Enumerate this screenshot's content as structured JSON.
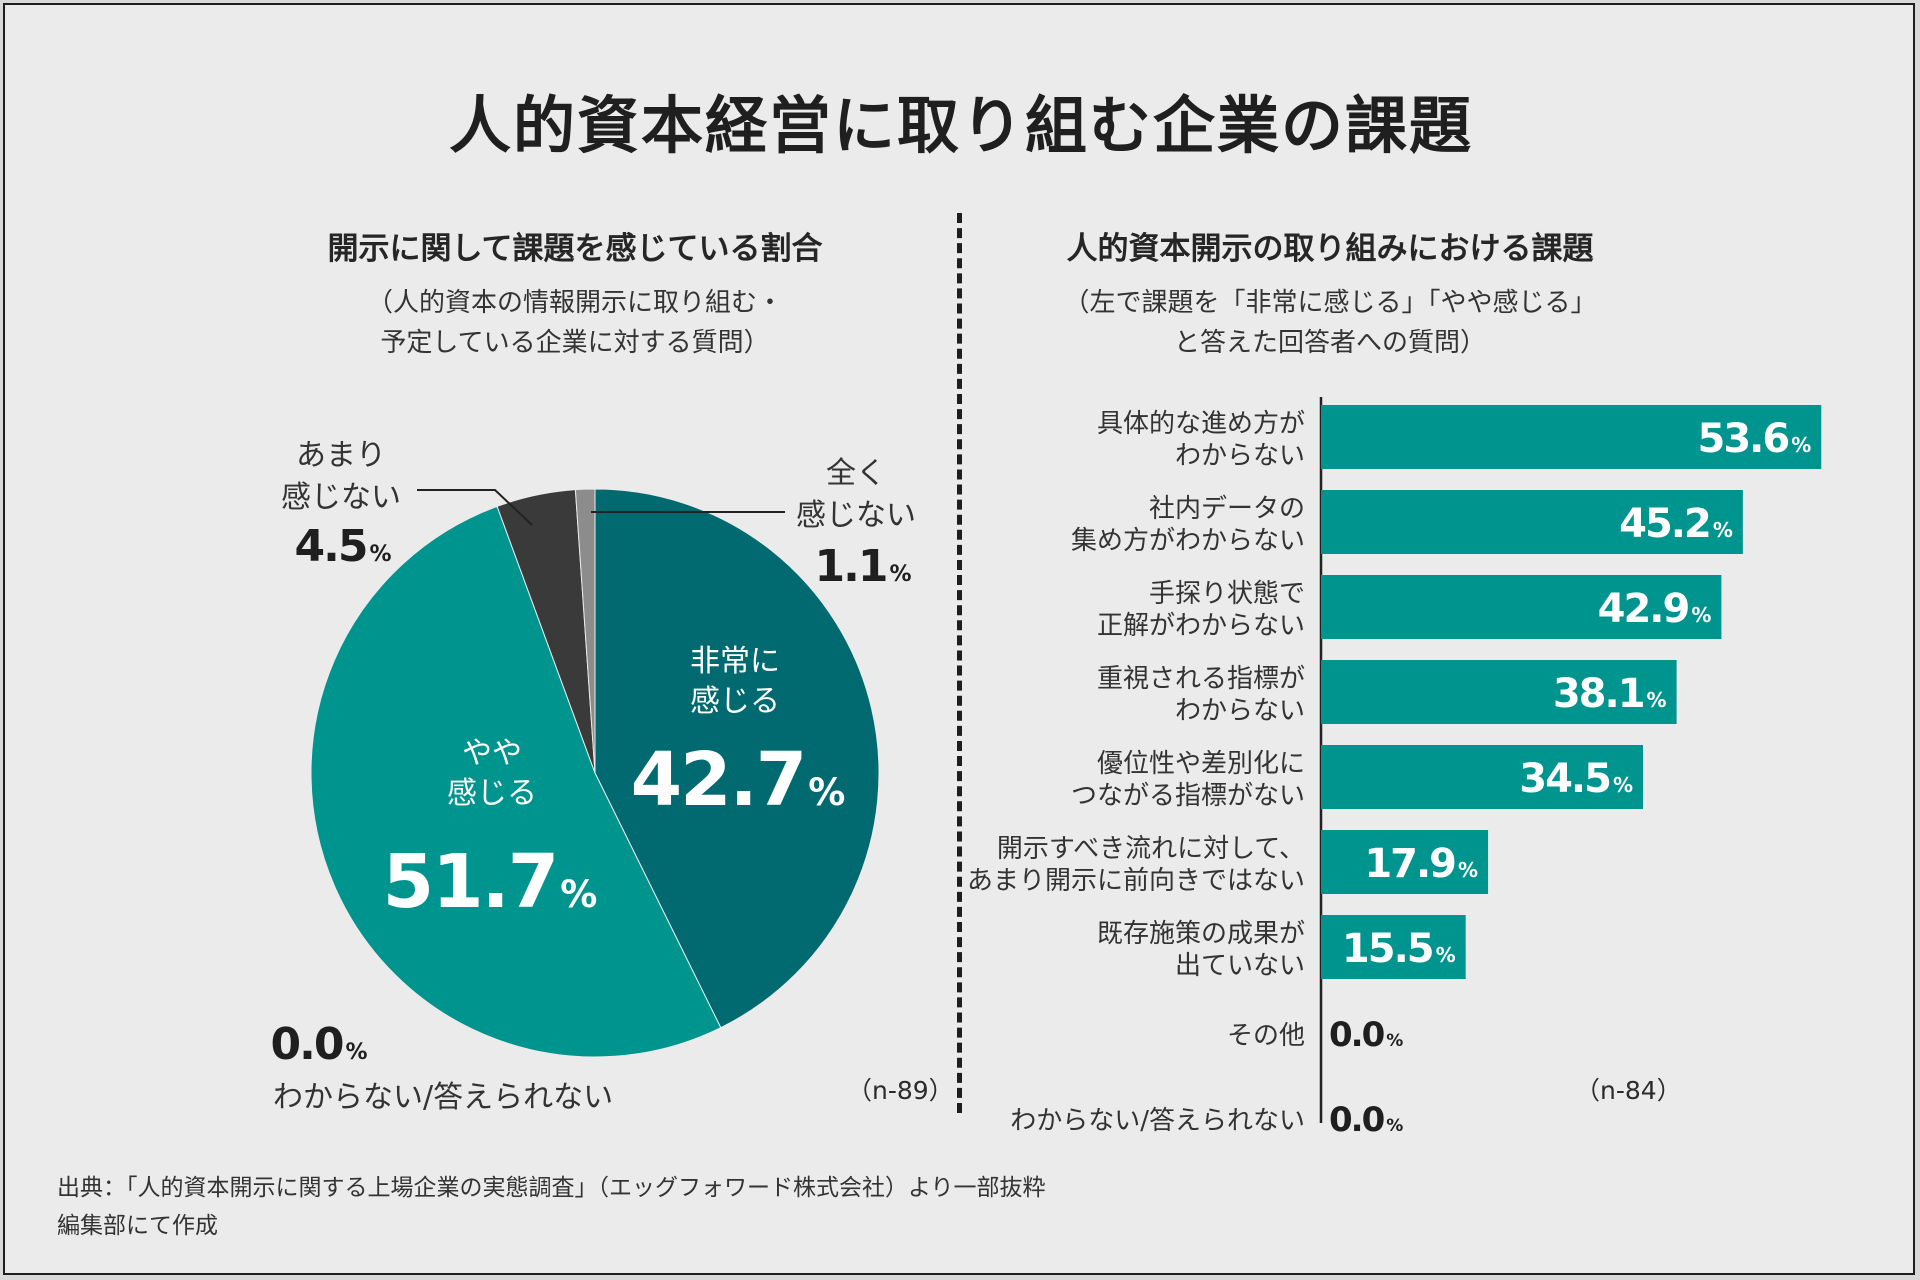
{
  "title": "人的資本経営に取り組む企業の課題",
  "left": {
    "heading": "開示に関して課題を感じている割合",
    "subheading_line1": "（人的資本の情報開示に取り組む・",
    "subheading_line2": "予定している企業に対する質問）",
    "sample": "（n-89）"
  },
  "right": {
    "heading": "人的資本開示の取り組みにおける課題",
    "subheading_line1": "（左で課題を「非常に感じる」「やや感じる」",
    "subheading_line2": "と答えた回答者への質問）",
    "sample": "（n-84）"
  },
  "footer": {
    "source": "出典：「人的資本開示に関する上場企業の実態調査」（エッグフォワード株式会社）より一部抜粋",
    "note": "編集部にて作成"
  },
  "chart_data": [
    {
      "type": "pie",
      "title": "開示に関して課題を感じている割合",
      "unit": "%",
      "slices": [
        {
          "label_lines": [
            "非常に",
            "感じる"
          ],
          "value": 42.7,
          "color": "#006a70",
          "label_position": "inside"
        },
        {
          "label_lines": [
            "やや",
            "感じる"
          ],
          "value": 51.7,
          "color": "#00948f",
          "label_position": "inside"
        },
        {
          "label_lines": [
            "わからない/答えられない"
          ],
          "value": 0.0,
          "color": "#555555",
          "label_position": "bottom-left"
        },
        {
          "label_lines": [
            "あまり",
            "感じない"
          ],
          "value": 4.5,
          "color": "#3a3a3a",
          "label_position": "top-left"
        },
        {
          "label_lines": [
            "全く",
            "感じない"
          ],
          "value": 1.1,
          "color": "#8c8c8c",
          "label_position": "top-right"
        }
      ]
    },
    {
      "type": "bar",
      "orientation": "horizontal",
      "title": "人的資本開示の取り組みにおける課題",
      "unit": "%",
      "xlim": [
        0,
        60
      ],
      "bar_color": "#00948f",
      "categories": [
        [
          "具体的な進め方が",
          "わからない"
        ],
        [
          "社内データの",
          "集め方がわからない"
        ],
        [
          "手探り状態で",
          "正解がわからない"
        ],
        [
          "重視される指標が",
          "わからない"
        ],
        [
          "優位性や差別化に",
          "つながる指標がない"
        ],
        [
          "開示すべき流れに対して、",
          "あまり開示に前向きではない"
        ],
        [
          "既存施策の成果が",
          "出ていない"
        ],
        [
          "その他"
        ],
        [
          "わからない/答えられない"
        ]
      ],
      "values": [
        53.6,
        45.2,
        42.9,
        38.1,
        34.5,
        17.9,
        15.5,
        0.0,
        0.0
      ]
    }
  ]
}
